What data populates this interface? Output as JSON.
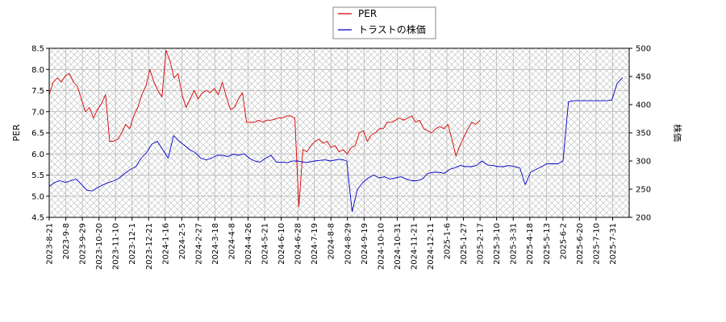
{
  "chart_data": {
    "type": "line",
    "x_tick_labels": [
      "2023-8-21",
      "2023-9-8",
      "2023-9-29",
      "2023-10-20",
      "2023-11-10",
      "2023-12-1",
      "2023-12-21",
      "2024-1-16",
      "2024-2-5",
      "2024-2-27",
      "2024-3-18",
      "2024-4-8",
      "2024-4-26",
      "2024-5-21",
      "2024-6-10",
      "2024-6-28",
      "2024-7-19",
      "2024-8-8",
      "2024-8-29",
      "2024-9-19",
      "2024-10-10",
      "2024-10-31",
      "2024-11-21",
      "2024-12-11",
      "2025-1-6",
      "2025-1-27",
      "2025-2-17",
      "2025-3-10",
      "2025-3-31",
      "2025-4-18",
      "2025-5-13",
      "2025-6-2",
      "2025-6-20",
      "2025-7-10",
      "2025-7-31"
    ],
    "y_left": {
      "label": "PER",
      "ylim": [
        4.5,
        8.5
      ],
      "ticks": [
        "4.5",
        "5.0",
        "5.5",
        "6.0",
        "6.5",
        "7.0",
        "7.5",
        "8.0",
        "8.5"
      ]
    },
    "y_right": {
      "label": "株価",
      "ylim": [
        200,
        500
      ],
      "ticks": [
        "200",
        "250",
        "300",
        "350",
        "400",
        "450",
        "500"
      ]
    },
    "grid": true,
    "hatched_background": true,
    "legend": {
      "position": "top-center"
    },
    "series": [
      {
        "name": "PER",
        "axis": "left",
        "color": "#d40000",
        "values": [
          7.4,
          7.7,
          7.8,
          7.7,
          7.85,
          7.9,
          7.7,
          7.6,
          7.3,
          7.0,
          7.1,
          6.85,
          7.05,
          7.2,
          7.4,
          6.3,
          6.3,
          6.35,
          6.5,
          6.7,
          6.6,
          6.9,
          7.1,
          7.4,
          7.6,
          8.0,
          7.7,
          7.5,
          7.35,
          8.45,
          8.2,
          7.8,
          7.9,
          7.4,
          7.1,
          7.3,
          7.5,
          7.3,
          7.45,
          7.5,
          7.45,
          7.55,
          7.4,
          7.7,
          7.35,
          7.05,
          7.1,
          7.3,
          7.45,
          6.75,
          6.75,
          6.75,
          6.8,
          6.75,
          6.8,
          6.8,
          6.82,
          6.85,
          6.85,
          6.9,
          6.9,
          6.85,
          4.75,
          6.1,
          6.05,
          6.2,
          6.3,
          6.35,
          6.25,
          6.3,
          6.15,
          6.2,
          6.05,
          6.1,
          6.0,
          6.15,
          6.2,
          6.5,
          6.55,
          6.3,
          6.45,
          6.5,
          6.6,
          6.6,
          6.75,
          6.75,
          6.8,
          6.85,
          6.8,
          6.85,
          6.9,
          6.75,
          6.8,
          6.6,
          6.55,
          6.5,
          6.6,
          6.65,
          6.6,
          6.7,
          6.35,
          5.95,
          6.2,
          6.4,
          6.6,
          6.75,
          6.7,
          6.8
        ],
        "x_last_index": 26
      },
      {
        "name": "トラストの株価",
        "axis": "right",
        "color": "#0000cc",
        "values": [
          255,
          262,
          265,
          262,
          265,
          268,
          258,
          248,
          247,
          253,
          258,
          262,
          265,
          270,
          278,
          285,
          290,
          305,
          315,
          330,
          335,
          320,
          305,
          345,
          335,
          328,
          320,
          315,
          305,
          302,
          305,
          310,
          310,
          308,
          312,
          310,
          313,
          305,
          300,
          298,
          305,
          310,
          298,
          298,
          297,
          300,
          300,
          298,
          298,
          300,
          301,
          302,
          300,
          302,
          303,
          300,
          210,
          250,
          262,
          270,
          275,
          270,
          272,
          268,
          270,
          272,
          268,
          265,
          265,
          268,
          278,
          280,
          280,
          278,
          285,
          288,
          292,
          290,
          290,
          292,
          300,
          293,
          292,
          290,
          290,
          292,
          290,
          288,
          258,
          280,
          285,
          290,
          295,
          295,
          295,
          300,
          405,
          407,
          407,
          407,
          407,
          407,
          407,
          407,
          408,
          438,
          448
        ],
        "x_last_index": 34.6
      }
    ]
  }
}
